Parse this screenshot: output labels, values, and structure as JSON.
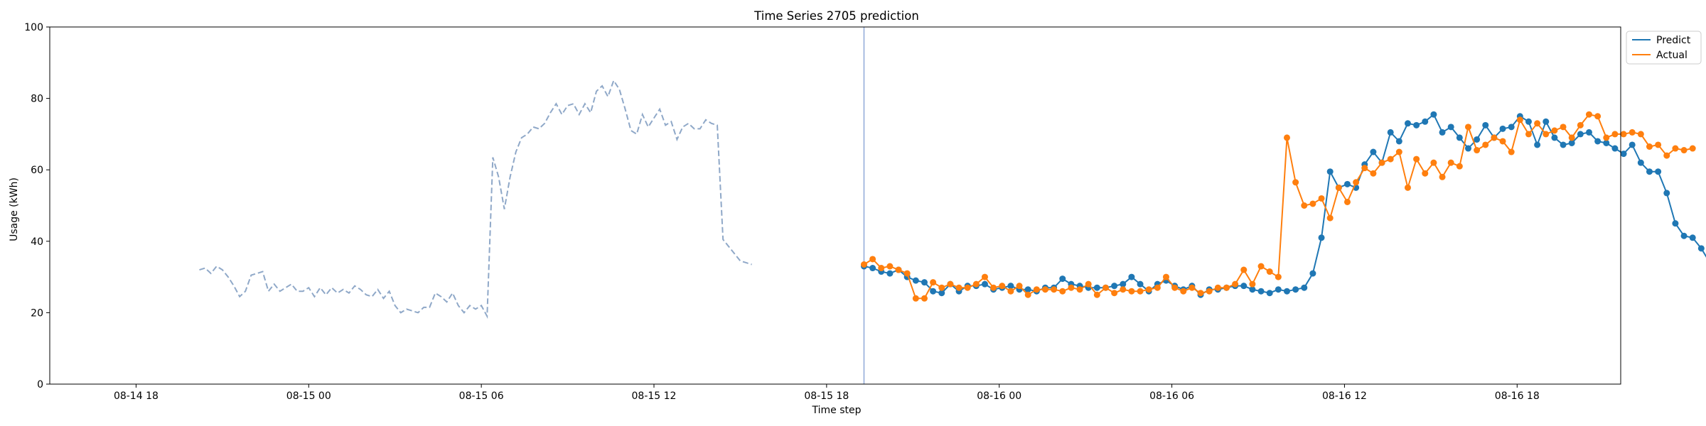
{
  "chart_data": {
    "type": "line",
    "title": "Time Series 2705 prediction",
    "xlabel": "Time step",
    "ylabel": "Usage (kWh)",
    "ylim": [
      0,
      100
    ],
    "xlim_hours": [
      -3.0,
      51.6
    ],
    "yticks": [
      0,
      20,
      40,
      60,
      80,
      100
    ],
    "xticks": [
      {
        "h": 0,
        "label": "08-14 18"
      },
      {
        "h": 6,
        "label": "08-15 00"
      },
      {
        "h": 12,
        "label": "08-15 06"
      },
      {
        "h": 18,
        "label": "08-15 12"
      },
      {
        "h": 24,
        "label": "08-15 18"
      },
      {
        "h": 30,
        "label": "08-16 00"
      },
      {
        "h": 36,
        "label": "08-16 06"
      },
      {
        "h": 42,
        "label": "08-16 12"
      },
      {
        "h": 48,
        "label": "08-16 18"
      }
    ],
    "grid": false,
    "legend_position": "top-right",
    "vline_h": 25.3,
    "history": {
      "start_h": 2.2,
      "step_h": 0.2,
      "color": "#8fa8c8",
      "values": [
        32,
        32.5,
        31,
        33,
        32,
        30,
        27.5,
        24.5,
        26,
        30.5,
        31,
        31.5,
        26,
        28,
        26,
        27,
        28,
        26,
        26,
        27,
        24.5,
        27,
        25,
        27,
        25.5,
        26.5,
        25.5,
        27.5,
        26.5,
        25,
        24.5,
        26.5,
        24,
        26,
        22,
        20,
        21,
        20.5,
        20,
        21.5,
        21.5,
        25.5,
        24.5,
        23,
        25.5,
        22,
        20,
        22,
        21,
        22,
        19,
        63.5,
        58,
        49,
        58,
        65,
        69,
        70,
        72,
        71.5,
        73,
        76,
        78.5,
        75.5,
        78,
        78.5,
        75.5,
        78.5,
        76,
        82,
        83.5,
        80.5,
        85,
        82.5,
        77,
        71,
        70,
        75.5,
        72,
        74.5,
        77,
        72.5,
        73.5,
        68.5,
        72,
        73,
        71.5,
        71.5,
        74,
        73,
        72.5,
        40.5,
        38.5,
        36.5,
        34.5,
        34,
        33.5
      ]
    },
    "series": [
      {
        "name": "Predict",
        "color": "#1f77b4",
        "start_h": 25.3,
        "step_h": 0.3,
        "values": [
          33,
          32.5,
          31.5,
          31,
          32,
          30,
          29,
          28.5,
          26,
          25.5,
          28,
          26,
          27.5,
          27.5,
          28,
          26.5,
          27,
          27.5,
          26.5,
          26.5,
          26,
          27,
          27,
          29.5,
          28,
          27.5,
          27,
          27,
          27,
          27.5,
          28,
          30,
          28,
          26,
          28,
          29,
          27.5,
          26.5,
          27.5,
          25,
          26.5,
          26.5,
          27,
          27.5,
          27.5,
          26.5,
          26,
          25.5,
          26.5,
          26,
          26.5,
          27,
          31,
          41,
          59.5,
          55,
          56,
          55,
          61.5,
          65,
          62,
          70.5,
          68,
          73,
          72.5,
          73.5,
          75.5,
          70.5,
          72,
          69,
          66,
          68.5,
          72.5,
          69,
          71.5,
          72,
          75,
          73.5,
          67,
          73.5,
          69,
          67,
          67.5,
          70,
          70.5,
          68,
          67.5,
          66,
          64.5,
          67,
          62,
          59.5,
          59.5,
          53.5,
          45,
          41.5,
          41,
          38,
          34
        ]
      },
      {
        "name": "Actual",
        "color": "#ff7f0e",
        "start_h": 25.3,
        "step_h": 0.3,
        "values": [
          33.5,
          35,
          32.5,
          33,
          32,
          31,
          24,
          24,
          28.5,
          27,
          28,
          27,
          27,
          28,
          30,
          27,
          27.5,
          26,
          27.5,
          25,
          26.5,
          26.5,
          26.5,
          26,
          27,
          26.5,
          28,
          25,
          27,
          25.5,
          26.5,
          26,
          26,
          26.5,
          27,
          30,
          27,
          26,
          27,
          25.5,
          26,
          27,
          27,
          28,
          32,
          28,
          33,
          31.5,
          30,
          69,
          56.5,
          50,
          50.5,
          52,
          46.5,
          55,
          51,
          56.5,
          60.5,
          59,
          62,
          63,
          65,
          55,
          63,
          59,
          62,
          58,
          62,
          61,
          72,
          65.5,
          67,
          69,
          68,
          65,
          74,
          70,
          73,
          70,
          71,
          72,
          69,
          72.5,
          75.5,
          75,
          69,
          70,
          70,
          70.5,
          70,
          66.5,
          67,
          64,
          66,
          65.5,
          66
        ]
      }
    ]
  }
}
